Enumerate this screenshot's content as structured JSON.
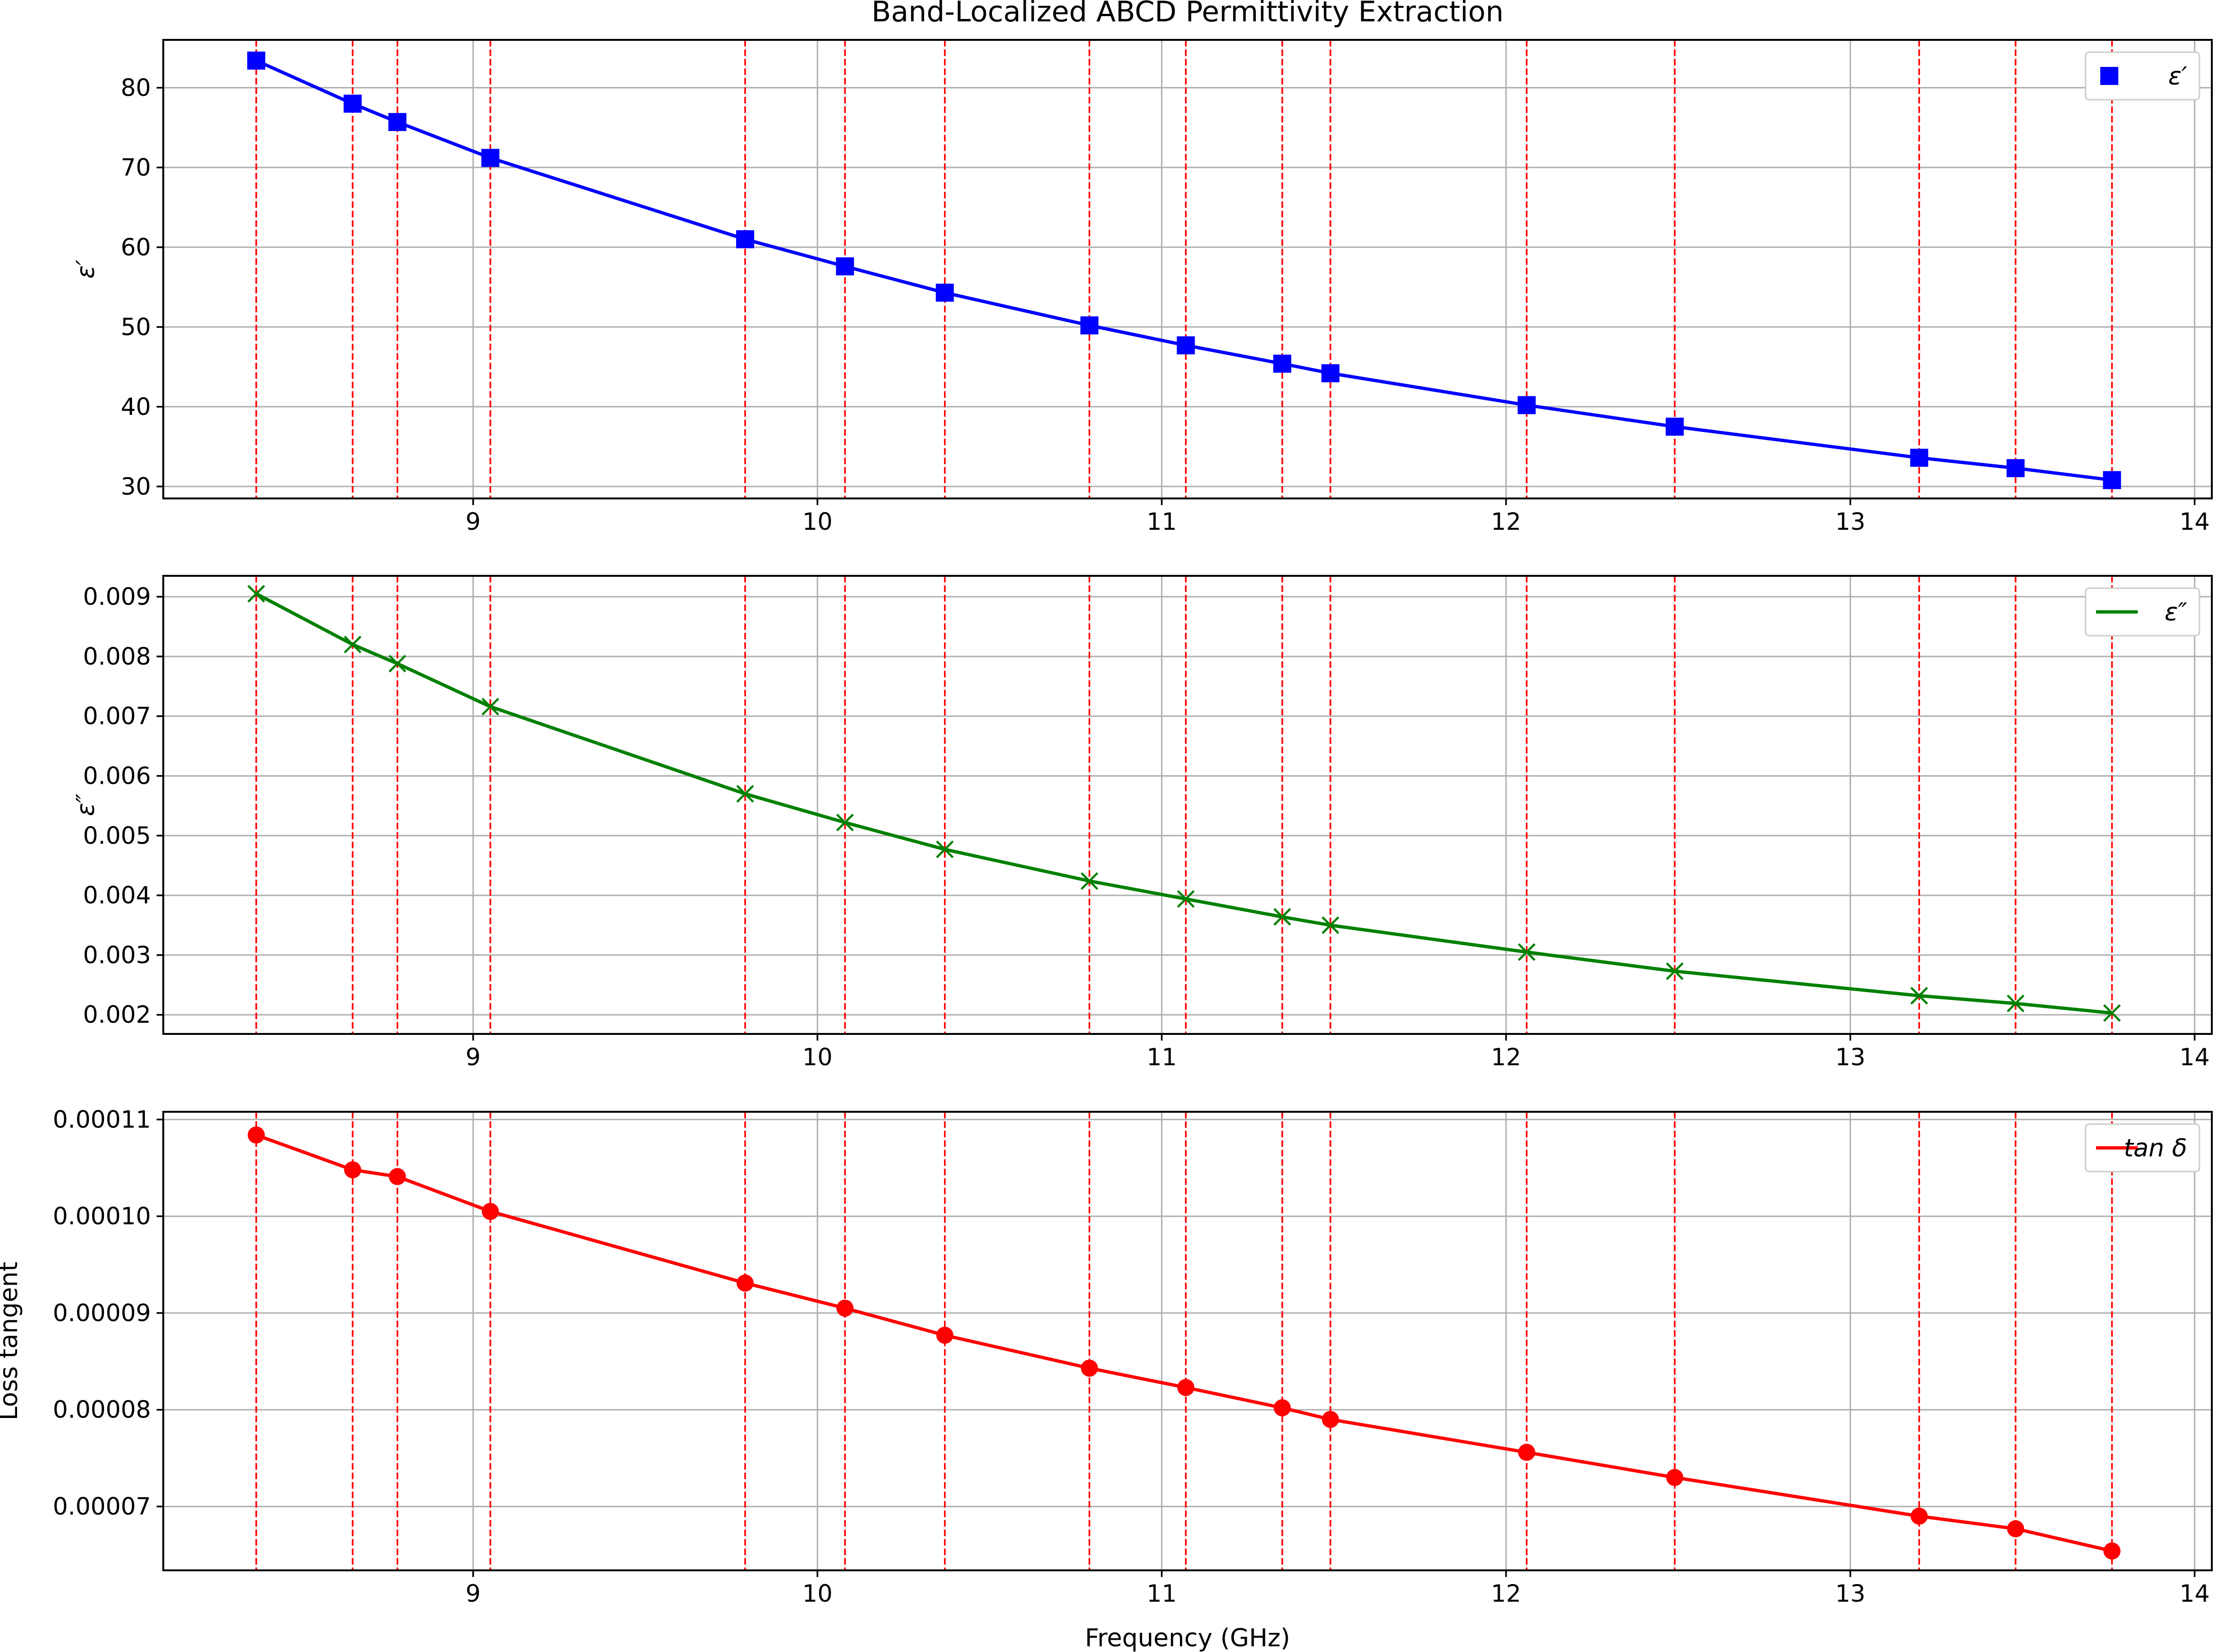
{
  "figure": {
    "title": "Band-Localized ABCD Permittivity Extraction",
    "xlabel": "Frequency (GHz)"
  },
  "chart_data": [
    {
      "type": "line",
      "title": "Band-Localized ABCD Permittivity Extraction",
      "xlabel": "",
      "ylabel": "ε′",
      "xlim": [
        8.1,
        14.05
      ],
      "ylim": [
        28.5,
        86.0
      ],
      "x_ticks": [
        "9",
        "10",
        "11",
        "12",
        "13",
        "14"
      ],
      "y_ticks": [
        30,
        40,
        50,
        60,
        70,
        80
      ],
      "y_tick_labels": [
        "30",
        "40",
        "50",
        "60",
        "70",
        "80"
      ],
      "grid": true,
      "legend_position": "top-right",
      "series": [
        {
          "name": "ε′",
          "color": "#0000ff",
          "marker": "square",
          "x": [
            8.37,
            8.65,
            8.78,
            9.05,
            9.79,
            10.08,
            10.37,
            10.79,
            11.07,
            11.35,
            11.49,
            12.06,
            12.49,
            13.2,
            13.48,
            13.76
          ],
          "values": [
            83.4,
            78.0,
            75.7,
            71.2,
            61.0,
            57.6,
            54.3,
            50.2,
            47.7,
            45.4,
            44.2,
            40.2,
            37.5,
            33.6,
            32.3,
            30.8
          ]
        }
      ]
    },
    {
      "type": "line",
      "xlabel": "",
      "ylabel": "ε″",
      "xlim": [
        8.1,
        14.05
      ],
      "ylim": [
        0.00168,
        0.00935
      ],
      "x_ticks": [
        "9",
        "10",
        "11",
        "12",
        "13",
        "14"
      ],
      "y_ticks": [
        0.002,
        0.003,
        0.004,
        0.005,
        0.006,
        0.007,
        0.008,
        0.009
      ],
      "y_tick_labels": [
        "0.002",
        "0.003",
        "0.004",
        "0.005",
        "0.006",
        "0.007",
        "0.008",
        "0.009"
      ],
      "grid": true,
      "legend_position": "top-right",
      "series": [
        {
          "name": "ε″",
          "color": "#008000",
          "marker": "x",
          "x": [
            8.37,
            8.65,
            8.78,
            9.05,
            9.79,
            10.08,
            10.37,
            10.79,
            11.07,
            11.35,
            11.49,
            12.06,
            12.49,
            13.2,
            13.48,
            13.76
          ],
          "values": [
            0.00905,
            0.0082,
            0.00788,
            0.00716,
            0.0057,
            0.00522,
            0.00477,
            0.00424,
            0.00394,
            0.00364,
            0.0035,
            0.00305,
            0.00273,
            0.00232,
            0.00219,
            0.00203
          ]
        }
      ]
    },
    {
      "type": "line",
      "xlabel": "Frequency (GHz)",
      "ylabel": "Loss tangent",
      "xlim": [
        8.1,
        14.05
      ],
      "ylim": [
        6.34e-05,
        0.0001108
      ],
      "x_ticks": [
        "9",
        "10",
        "11",
        "12",
        "13",
        "14"
      ],
      "y_ticks": [
        7e-05,
        8e-05,
        9e-05,
        0.0001,
        0.00011
      ],
      "y_tick_labels": [
        "0.00007",
        "0.00008",
        "0.00009",
        "0.00010",
        "0.00011"
      ],
      "grid": true,
      "legend_position": "top-right",
      "series": [
        {
          "name": "tan δ",
          "color": "#ff0000",
          "marker": "circle",
          "x": [
            8.37,
            8.65,
            8.78,
            9.05,
            9.79,
            10.08,
            10.37,
            10.79,
            11.07,
            11.35,
            11.49,
            12.06,
            12.49,
            13.2,
            13.48,
            13.76
          ],
          "values": [
            0.0001084,
            0.0001048,
            0.0001041,
            0.0001005,
            9.31e-05,
            9.05e-05,
            8.77e-05,
            8.43e-05,
            8.23e-05,
            8.02e-05,
            7.9e-05,
            7.56e-05,
            7.3e-05,
            6.9e-05,
            6.77e-05,
            6.54e-05
          ]
        }
      ]
    }
  ],
  "band_markers": {
    "color": "#ff0000",
    "style": "dashed",
    "x": [
      8.37,
      8.65,
      8.78,
      9.05,
      9.79,
      10.08,
      10.37,
      10.79,
      11.07,
      11.35,
      11.49,
      12.06,
      12.49,
      13.2,
      13.48,
      13.76
    ]
  },
  "colors": {
    "grid": "#b0b0b0",
    "axes": "#000000",
    "background": "#ffffff"
  }
}
